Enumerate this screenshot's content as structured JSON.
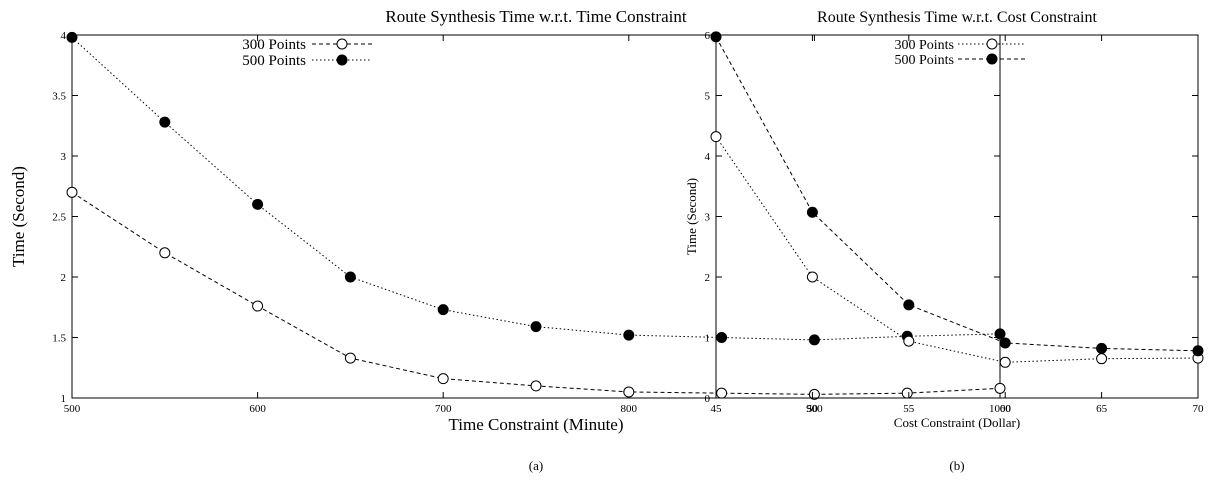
{
  "chart_data": [
    {
      "type": "line",
      "title": "Route Synthesis Time w.r.t. Time Constraint",
      "xlabel": "Time Constraint (Minute)",
      "ylabel": "Time (Second)",
      "caption": "(a)",
      "xlim": [
        500,
        1000
      ],
      "ylim": [
        1,
        4
      ],
      "xticks": [
        500,
        600,
        700,
        800,
        900,
        1000
      ],
      "yticks": [
        1,
        1.5,
        2,
        2.5,
        3,
        3.5,
        4
      ],
      "ytick_labels": [
        "1",
        "1.5",
        "2",
        "2.5",
        "3",
        "3.5",
        "4"
      ],
      "x": [
        500,
        550,
        600,
        650,
        700,
        750,
        800,
        850,
        900,
        950,
        1000
      ],
      "legend_position": "top-center",
      "grid": false,
      "series": [
        {
          "name": "300 Points",
          "marker": "open-circle",
          "dash": "dashed",
          "values": [
            2.7,
            2.2,
            1.76,
            1.33,
            1.16,
            1.1,
            1.05,
            1.04,
            1.03,
            1.04,
            1.08
          ]
        },
        {
          "name": "500 Points",
          "marker": "filled-circle",
          "dash": "dotted",
          "values": [
            3.98,
            3.28,
            2.6,
            2.0,
            1.73,
            1.59,
            1.52,
            1.5,
            1.48,
            1.51,
            1.53
          ]
        }
      ]
    },
    {
      "type": "line",
      "title": "Route Synthesis Time w.r.t. Cost Constraint",
      "xlabel": "Cost Constraint (Dollar)",
      "ylabel": "Time (Second)",
      "caption": "(b)",
      "xlim": [
        45,
        70
      ],
      "ylim": [
        0,
        6
      ],
      "xticks": [
        45,
        50,
        55,
        60,
        65,
        70
      ],
      "yticks": [
        0,
        1,
        2,
        3,
        4,
        5,
        6
      ],
      "ytick_labels": [
        "0",
        "1",
        "2",
        "3",
        "4",
        "5",
        "6"
      ],
      "x": [
        45,
        50,
        55,
        60,
        65,
        70
      ],
      "legend_position": "top-center",
      "grid": false,
      "series": [
        {
          "name": "300 Points",
          "marker": "open-circle",
          "dash": "dotted",
          "values": [
            4.32,
            2.0,
            0.94,
            0.59,
            0.65,
            0.66
          ]
        },
        {
          "name": "500 Points",
          "marker": "filled-circle",
          "dash": "dashed",
          "values": [
            5.97,
            3.07,
            1.54,
            0.91,
            0.82,
            0.78
          ]
        }
      ]
    }
  ]
}
